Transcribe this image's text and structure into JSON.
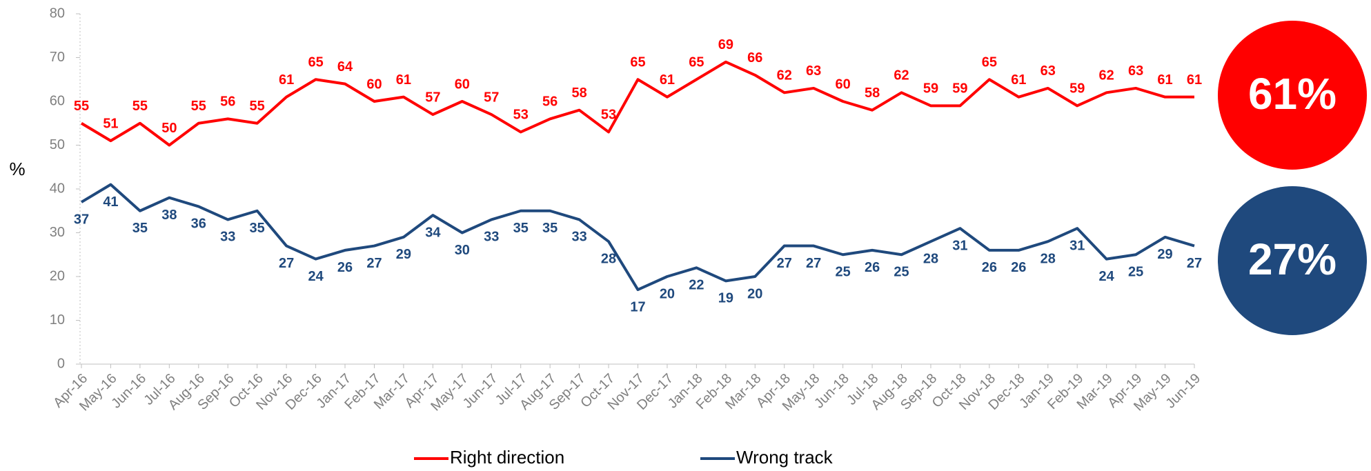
{
  "chart_data": {
    "type": "line",
    "y_label": "%",
    "categories": [
      "Apr-16",
      "May-16",
      "Jun-16",
      "Jul-16",
      "Aug-16",
      "Sep-16",
      "Oct-16",
      "Nov-16",
      "Dec-16",
      "Jan-17",
      "Feb-17",
      "Mar-17",
      "Apr-17",
      "May-17",
      "Jun-17",
      "Jul-17",
      "Aug-17",
      "Sep-17",
      "Oct-17",
      "Nov-17",
      "Dec-17",
      "Jan-18",
      "Feb-18",
      "Mar-18",
      "Apr-18",
      "May-18",
      "Jun-18",
      "Jul-18",
      "Aug-18",
      "Sep-18",
      "Oct-18",
      "Nov-18",
      "Dec-18",
      "Jan-19",
      "Feb-19",
      "Mar-19",
      "Apr-19",
      "May-19",
      "Jun-19"
    ],
    "series": [
      {
        "name": "Right direction",
        "color": "#ff0000",
        "values": [
          55,
          51,
          55,
          50,
          55,
          56,
          55,
          61,
          65,
          64,
          60,
          61,
          57,
          60,
          57,
          53,
          56,
          58,
          53,
          65,
          61,
          65,
          69,
          66,
          62,
          63,
          60,
          58,
          62,
          59,
          59,
          65,
          61,
          63,
          59,
          62,
          63,
          61,
          61
        ]
      },
      {
        "name": "Wrong track",
        "color": "#1f497d",
        "values": [
          37,
          41,
          35,
          38,
          36,
          33,
          35,
          27,
          24,
          26,
          27,
          29,
          34,
          30,
          33,
          35,
          35,
          33,
          28,
          17,
          20,
          22,
          19,
          20,
          27,
          27,
          25,
          26,
          25,
          28,
          31,
          26,
          26,
          28,
          31,
          24,
          25,
          29,
          27
        ]
      }
    ],
    "ylim": [
      0,
      80
    ],
    "yticks": [
      0,
      10,
      20,
      30,
      40,
      50,
      60,
      70,
      80
    ],
    "callouts": [
      {
        "value": 61,
        "label": "61%"
      },
      {
        "value": 27,
        "label": "27%"
      }
    ]
  }
}
